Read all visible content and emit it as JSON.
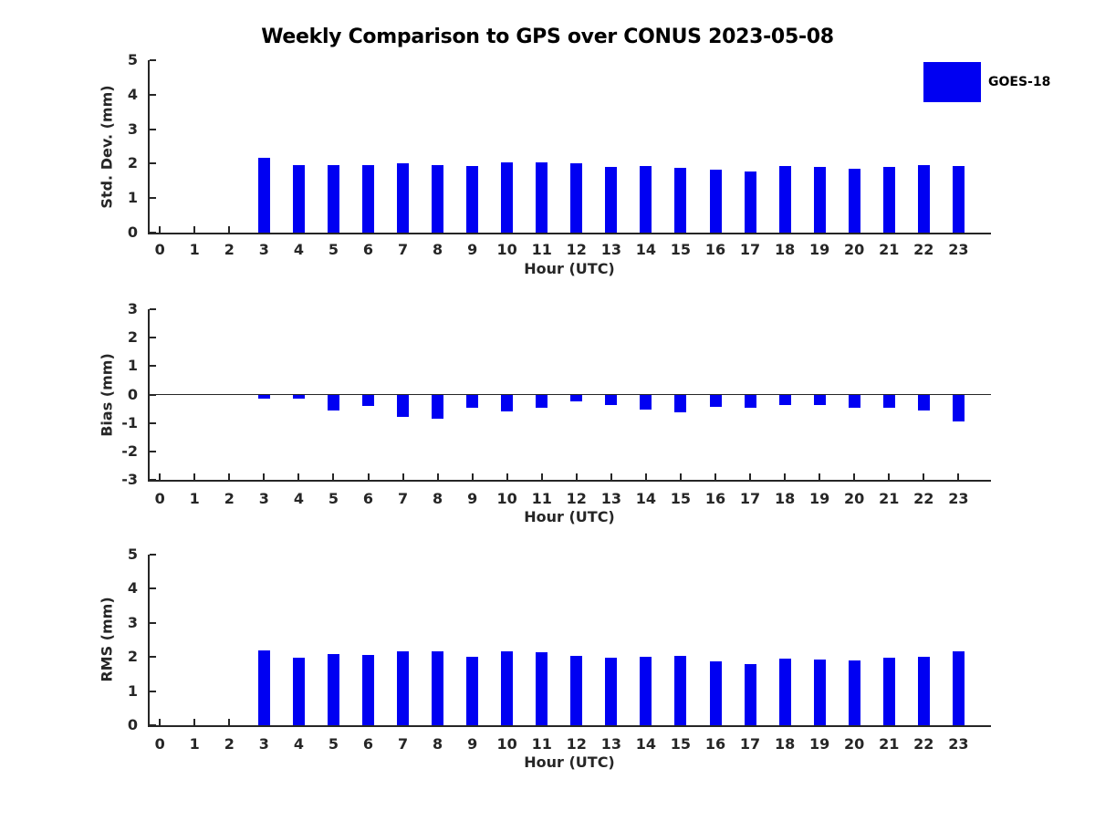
{
  "title": "Weekly Comparison to GPS over CONUS 2023-05-08",
  "legend": {
    "label": "GOES-18",
    "position": "top-right"
  },
  "colors": {
    "bar": "#0000f2",
    "axis": "#262626",
    "tick_text": "#262626",
    "title_text": "#000000"
  },
  "chart_data": [
    {
      "type": "bar",
      "ylabel": "Std. Dev. (mm)",
      "xlabel": "Hour (UTC)",
      "ylim": [
        0,
        5
      ],
      "yticks": [
        0,
        1,
        2,
        3,
        4,
        5
      ],
      "grid": false,
      "categories": [
        "0",
        "1",
        "2",
        "3",
        "4",
        "5",
        "6",
        "7",
        "8",
        "9",
        "10",
        "11",
        "12",
        "13",
        "14",
        "15",
        "16",
        "17",
        "18",
        "19",
        "20",
        "21",
        "22",
        "23"
      ],
      "series": [
        {
          "name": "GOES-18",
          "values": [
            null,
            null,
            null,
            2.17,
            1.95,
            1.97,
            1.97,
            2.0,
            1.95,
            1.92,
            2.05,
            2.05,
            2.0,
            1.91,
            1.92,
            1.89,
            1.83,
            1.76,
            1.92,
            1.91,
            1.84,
            1.91,
            1.95,
            1.94
          ]
        }
      ]
    },
    {
      "type": "bar",
      "ylabel": "Bias (mm)",
      "xlabel": "Hour (UTC)",
      "ylim": [
        -3,
        3
      ],
      "yticks": [
        -3,
        -2,
        -1,
        0,
        1,
        2,
        3
      ],
      "zero_line": true,
      "grid": false,
      "categories": [
        "0",
        "1",
        "2",
        "3",
        "4",
        "5",
        "6",
        "7",
        "8",
        "9",
        "10",
        "11",
        "12",
        "13",
        "14",
        "15",
        "16",
        "17",
        "18",
        "19",
        "20",
        "21",
        "22",
        "23"
      ],
      "series": [
        {
          "name": "GOES-18",
          "values": [
            null,
            null,
            null,
            -0.15,
            -0.15,
            -0.55,
            -0.4,
            -0.8,
            -0.85,
            -0.45,
            -0.6,
            -0.47,
            -0.23,
            -0.38,
            -0.54,
            -0.61,
            -0.43,
            -0.45,
            -0.37,
            -0.37,
            -0.48,
            -0.47,
            -0.55,
            -0.96
          ]
        }
      ]
    },
    {
      "type": "bar",
      "ylabel": "RMS (mm)",
      "xlabel": "Hour (UTC)",
      "ylim": [
        0,
        5
      ],
      "yticks": [
        0,
        1,
        2,
        3,
        4,
        5
      ],
      "grid": false,
      "categories": [
        "0",
        "1",
        "2",
        "3",
        "4",
        "5",
        "6",
        "7",
        "8",
        "9",
        "10",
        "11",
        "12",
        "13",
        "14",
        "15",
        "16",
        "17",
        "18",
        "19",
        "20",
        "21",
        "22",
        "23"
      ],
      "series": [
        {
          "name": "GOES-18",
          "values": [
            null,
            null,
            null,
            2.2,
            1.97,
            2.08,
            2.06,
            2.16,
            2.16,
            2.0,
            2.16,
            2.14,
            2.02,
            1.97,
            2.0,
            2.02,
            1.88,
            1.8,
            1.96,
            1.93,
            1.91,
            1.99,
            2.01,
            2.17
          ]
        }
      ]
    }
  ]
}
